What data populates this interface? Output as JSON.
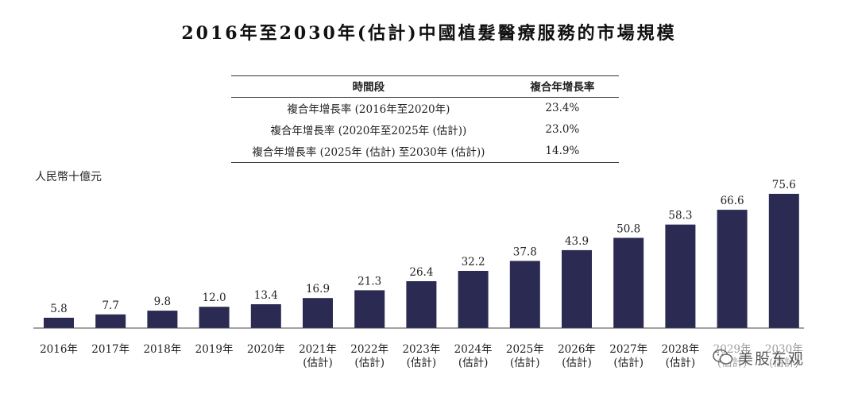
{
  "title": "2016年至2030年(估計)中國植髮醫療服務的市場規模",
  "table": {
    "headers": [
      "時間段",
      "複合年增長率"
    ],
    "rows": [
      [
        "複合年增長率 (2016年至2020年)",
        "23.4%"
      ],
      [
        "複合年增長率 (2020年至2025年 (估計))",
        "23.0%"
      ],
      [
        "複合年增長率 (2025年 (估計) 至2030年 (估計))",
        "14.9%"
      ]
    ]
  },
  "chart_data": {
    "type": "bar",
    "title": "",
    "ylabel": "人民幣十億元",
    "xlabel": "",
    "categories": [
      "2016年",
      "2017年",
      "2018年",
      "2019年",
      "2020年",
      "2021年",
      "2022年",
      "2023年",
      "2024年",
      "2025年",
      "2026年",
      "2027年",
      "2028年",
      "2029年",
      "2030年"
    ],
    "category_notes": [
      "",
      "",
      "",
      "",
      "",
      "(估計)",
      "(估計)",
      "(估計)",
      "(估計)",
      "(估計)",
      "(估計)",
      "(估計)",
      "(估計)",
      "(估計)",
      "(估計)"
    ],
    "values": [
      5.8,
      7.7,
      9.8,
      12.0,
      13.4,
      16.9,
      21.3,
      26.4,
      32.2,
      37.8,
      43.9,
      50.8,
      58.3,
      66.6,
      75.6
    ],
    "value_labels": [
      "5.8",
      "7.7",
      "9.8",
      "12.0",
      "13.4",
      "16.9",
      "21.3",
      "26.4",
      "32.2",
      "37.8",
      "43.9",
      "50.8",
      "58.3",
      "66.6",
      "75.6"
    ],
    "ylim": [
      0,
      75.6
    ],
    "grid": false,
    "bar_color": "#2a2a52"
  },
  "watermark": {
    "text": "美股东观",
    "icon": "wechat-icon"
  }
}
